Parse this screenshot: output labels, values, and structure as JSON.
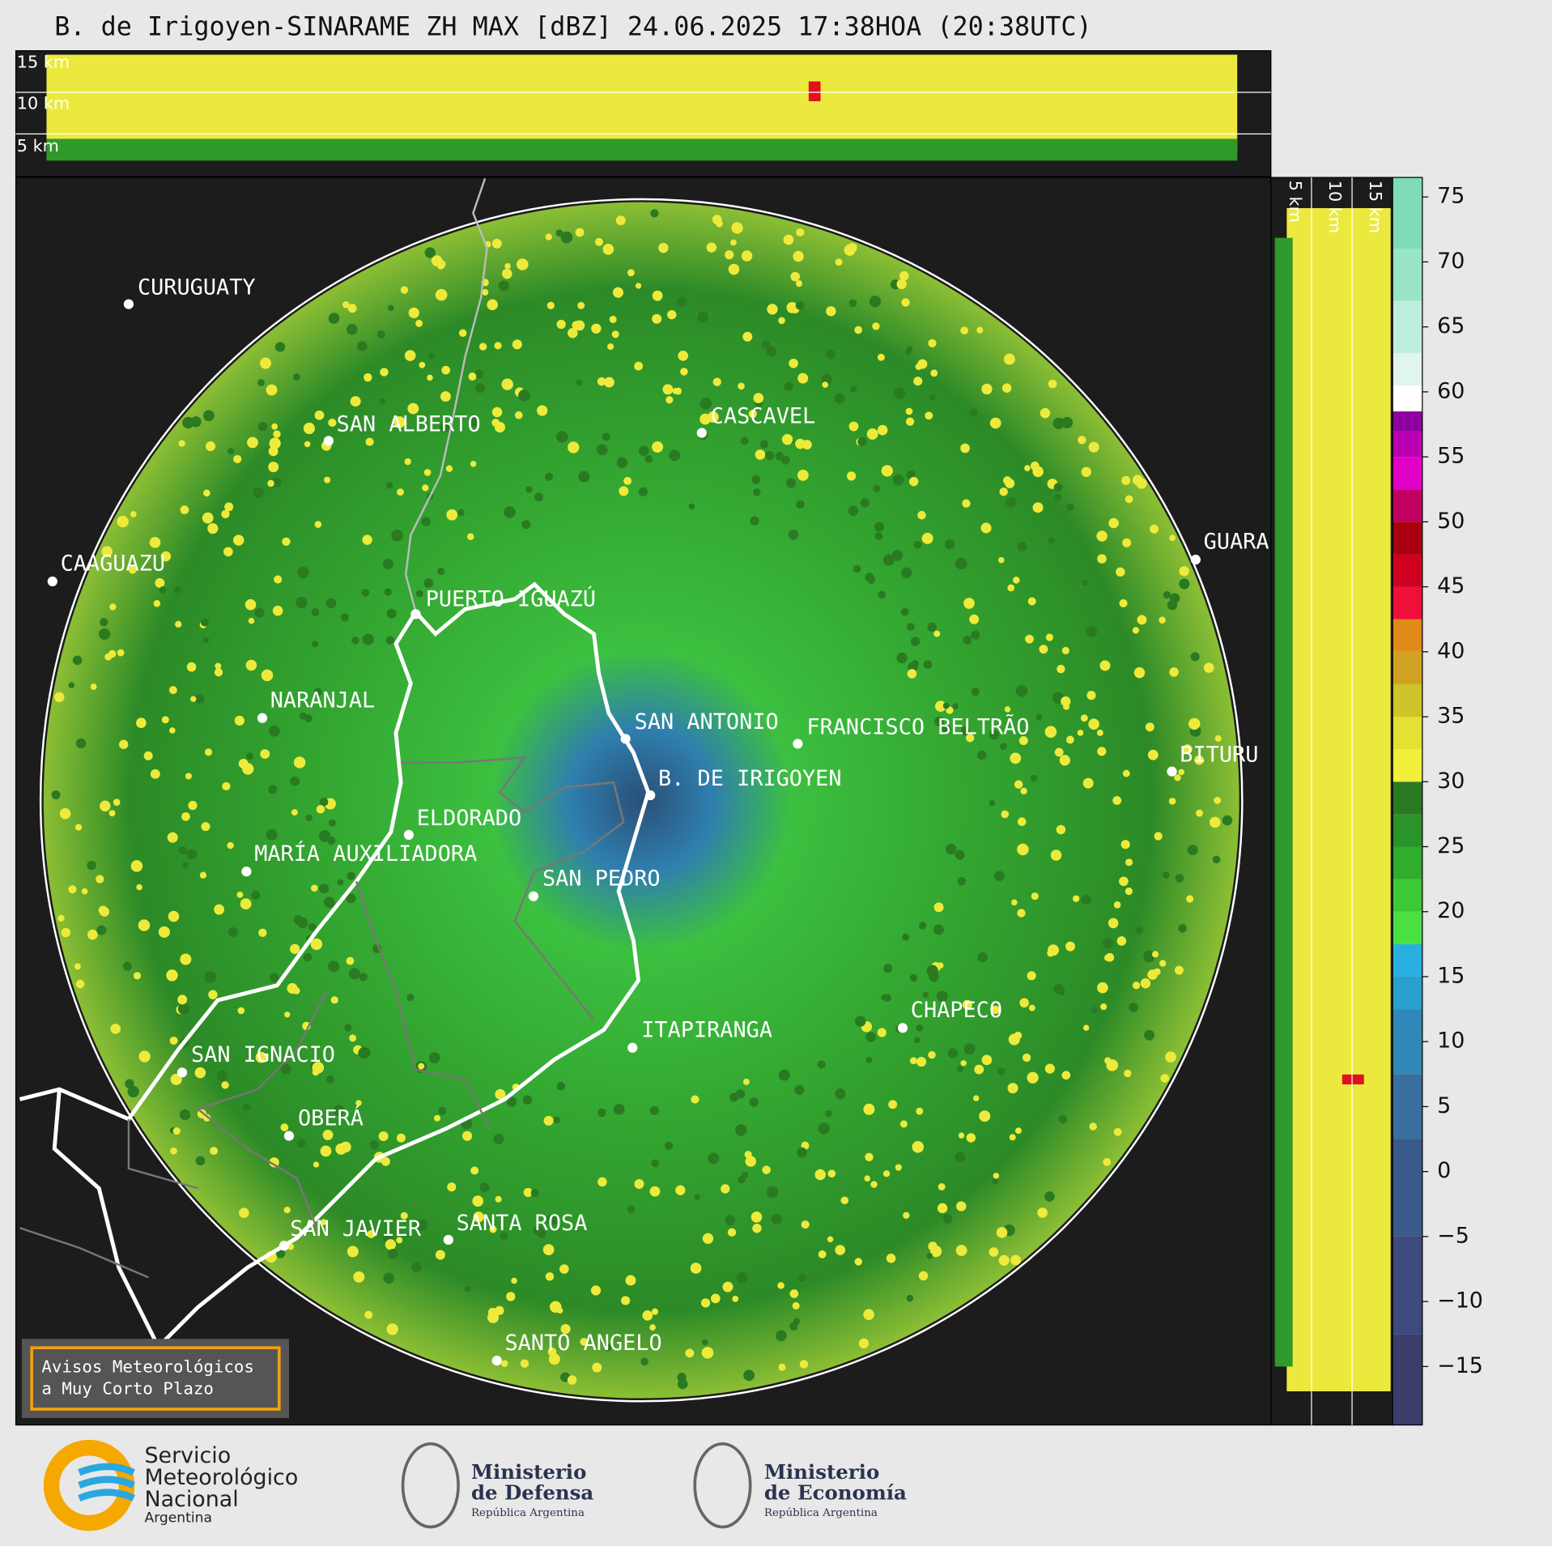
{
  "header": {
    "title": "B. de Irigoyen-SINARAME ZH MAX [dBZ] 24.06.2025 17:38HOA (20:38UTC)"
  },
  "top_panel": {
    "labels": [
      "15 km",
      "10 km",
      "5 km"
    ]
  },
  "side_panel": {
    "labels": [
      "5 km",
      "10 km",
      "15 km"
    ]
  },
  "colorbar": {
    "lim": [
      -19.5,
      76.5
    ],
    "ticks": [
      75,
      70,
      65,
      60,
      55,
      50,
      45,
      40,
      35,
      30,
      25,
      20,
      15,
      10,
      5,
      0,
      {
        "value": -5,
        "label": "−5"
      },
      {
        "value": -10,
        "label": "−10"
      },
      {
        "value": -15,
        "label": "−15"
      }
    ],
    "segments": [
      {
        "from": -19.5,
        "color": "#3b3d6b"
      },
      {
        "from": -12.5,
        "color": "#3d4a7c"
      },
      {
        "from": -5,
        "color": "#3a5a8c"
      },
      {
        "from": 2.5,
        "color": "#386f9f"
      },
      {
        "from": 7.5,
        "color": "#2f88b8"
      },
      {
        "from": 12.5,
        "color": "#2a9fd0"
      },
      {
        "from": 15,
        "color": "#2ab0e0"
      },
      {
        "from": 17.5,
        "color": "#4ae043"
      },
      {
        "from": 20,
        "color": "#3cc936"
      },
      {
        "from": 22.5,
        "color": "#30ad2d"
      },
      {
        "from": 25,
        "color": "#2a9428"
      },
      {
        "from": 27.5,
        "color": "#2a7a22"
      },
      {
        "from": 30,
        "color": "#f2f03c"
      },
      {
        "from": 32.5,
        "color": "#e4e034"
      },
      {
        "from": 35,
        "color": "#cfc42a"
      },
      {
        "from": 37.5,
        "color": "#d0a224"
      },
      {
        "from": 40,
        "color": "#e08a18"
      },
      {
        "from": 42.5,
        "color": "#ee1038"
      },
      {
        "from": 45,
        "color": "#d00020"
      },
      {
        "from": 47.5,
        "color": "#a80010"
      },
      {
        "from": 50,
        "color": "#c00060"
      },
      {
        "from": 52.5,
        "color": "#e000c8"
      },
      {
        "from": 55,
        "color": "#b800b0"
      },
      {
        "from": 57,
        "color": "#8e00a0"
      },
      {
        "from": 58.5,
        "color": "#ffffff"
      },
      {
        "from": 60.5,
        "color": "#e0f5ec"
      },
      {
        "from": 63,
        "color": "#bdeedc"
      },
      {
        "from": 67,
        "color": "#9ae4c8"
      },
      {
        "from": 71,
        "color": "#80dcb8"
      }
    ]
  },
  "cities": [
    "CURUGUATY",
    "SAN ALBERTO",
    "CASCAVEL",
    "CAAGUAZU",
    "GUARA",
    "PUERTO IGUAZÚ",
    "NARANJAL",
    "SAN ANTONIO",
    "FRANCISCO BELTRÃO",
    "BITURU",
    "B. DE IRIGOYEN",
    "ELDORADO",
    "MARÍA AUXILIADORA",
    "SAN PEDRO",
    "CHAPECO",
    "ITAPIRANGA",
    "SAN IGNACIO",
    "OBERÁ",
    "SAN JAVIER",
    "SANTA ROSA",
    "SANTO ANGELO"
  ],
  "notice": {
    "lines": [
      "Avisos Meteorológicos",
      "a Muy Corto Plazo"
    ]
  },
  "logos": [
    {
      "lines": [
        "Servicio",
        "Meteorológico",
        "Nacional",
        "Argentina"
      ]
    },
    {
      "lines": [
        "Ministerio",
        "de Defensa",
        "República Argentina"
      ]
    },
    {
      "lines": [
        "Ministerio",
        "de Economía",
        "República Argentina"
      ]
    }
  ]
}
